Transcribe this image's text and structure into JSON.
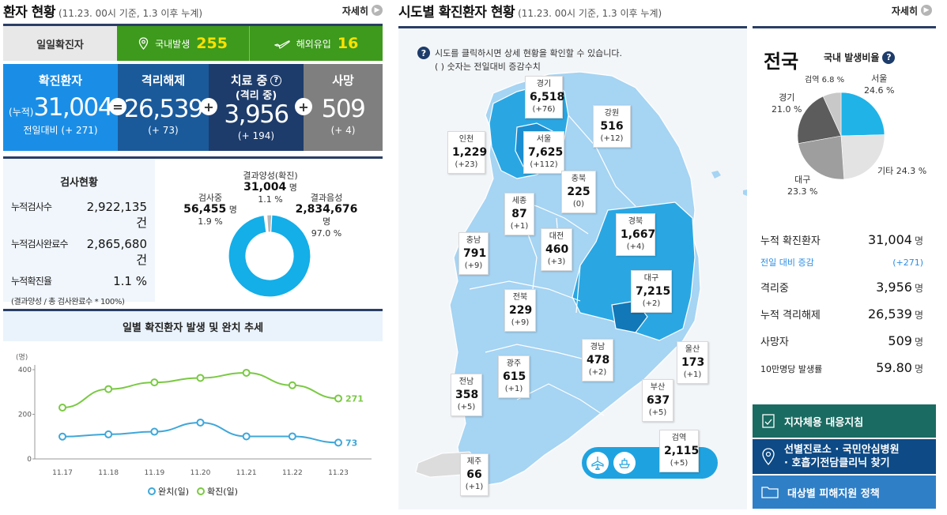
{
  "left_header": {
    "title": "환자 현황",
    "subtitle": "(11.23. 00시 기준, 1.3 이후 누계)",
    "more": "자세히"
  },
  "daily": {
    "label": "일일확진자",
    "domestic_label": "국내발생",
    "domestic_value": "255",
    "overseas_label": "해외유입",
    "overseas_value": "16"
  },
  "summary": {
    "confirmed": {
      "title": "확진환자",
      "prefix": "(누적)",
      "value": "31,004",
      "diff": "전일대비 (+ 271)"
    },
    "released": {
      "title": "격리해제",
      "value": "26,539",
      "diff": "(+ 73)"
    },
    "treating": {
      "title": "치료 중",
      "subtitle": "(격리 중)",
      "value": "3,956",
      "diff": "(+ 194)"
    },
    "deceased": {
      "title": "사망",
      "value": "509",
      "diff": "(+ 4)"
    },
    "op_equal": "=",
    "op_plus": "+"
  },
  "tests": {
    "title": "검사현황",
    "rows": [
      {
        "label": "누적검사수",
        "value": "2,922,135 건"
      },
      {
        "label": "누적검사완료수",
        "value": "2,865,680 건"
      },
      {
        "label": "누적확진율",
        "value": "1.1 %"
      }
    ],
    "note": "(결과양성 / 총 검사완료수 * 100%)",
    "donut": {
      "positive_label": "결과양성(확진)",
      "positive_value": "31,004",
      "positive_unit": "명",
      "positive_pct": "1.1 %",
      "testing_label": "검사중",
      "testing_value": "56,455",
      "testing_unit": "명",
      "testing_pct": "1.9 %",
      "negative_label": "결과음성",
      "negative_value": "2,834,676",
      "negative_unit": "명",
      "negative_pct": "97.0 %",
      "shares": [
        1.1,
        1.9,
        97.0
      ],
      "colors": [
        "#ffffff",
        "#b8b8b8",
        "#14aee8"
      ]
    }
  },
  "chart_data": {
    "type": "line",
    "title": "일별 확진환자 발생 및 완치 추세",
    "ylabel": "(명)",
    "ylim": [
      0,
      400
    ],
    "yticks": [
      "0",
      "200",
      "400"
    ],
    "categories": [
      "11.17",
      "11.18",
      "11.19",
      "11.20",
      "11.21",
      "11.22",
      "11.23"
    ],
    "series": [
      {
        "name": "완치(일)",
        "color": "#3fa7d9",
        "values": [
          100,
          110,
          122,
          163,
          101,
          101,
          73
        ]
      },
      {
        "name": "확진(일)",
        "color": "#7ac943",
        "values": [
          230,
          313,
          343,
          363,
          386,
          330,
          271
        ]
      }
    ],
    "end_labels": [
      "73",
      "271"
    ],
    "legend": "bottom"
  },
  "map_header": {
    "title": "시도별 확진환자 현황",
    "subtitle": "(11.23. 00시 기준, 1.3 이후 누계)",
    "more": "자세히"
  },
  "map": {
    "help_icon": "question-icon",
    "notice_line1": "시도를 클릭하시면 상세 현황을 확인할 수 있습니다.",
    "notice_line2": "( ) 숫자는 전일대비 증감수치",
    "regions": [
      {
        "name": "경기",
        "value": "6,518",
        "diff": "(+76)"
      },
      {
        "name": "강원",
        "value": "516",
        "diff": "(+12)"
      },
      {
        "name": "인천",
        "value": "1,229",
        "diff": "(+23)"
      },
      {
        "name": "서울",
        "value": "7,625",
        "diff": "(+112)"
      },
      {
        "name": "충북",
        "value": "225",
        "diff": "(0)"
      },
      {
        "name": "세종",
        "value": "87",
        "diff": "(+1)"
      },
      {
        "name": "경북",
        "value": "1,667",
        "diff": "(+4)"
      },
      {
        "name": "충남",
        "value": "791",
        "diff": "(+9)"
      },
      {
        "name": "대전",
        "value": "460",
        "diff": "(+3)"
      },
      {
        "name": "대구",
        "value": "7,215",
        "diff": "(+2)"
      },
      {
        "name": "전북",
        "value": "229",
        "diff": "(+9)"
      },
      {
        "name": "경남",
        "value": "478",
        "diff": "(+2)"
      },
      {
        "name": "울산",
        "value": "173",
        "diff": "(+1)"
      },
      {
        "name": "광주",
        "value": "615",
        "diff": "(+1)"
      },
      {
        "name": "전남",
        "value": "358",
        "diff": "(+5)"
      },
      {
        "name": "부산",
        "value": "637",
        "diff": "(+5)"
      },
      {
        "name": "제주",
        "value": "66",
        "diff": "(+1)"
      }
    ],
    "quarantine": {
      "name": "검역",
      "value": "2,115",
      "diff": "(+5)",
      "icons": [
        "airplane-icon",
        "ship-icon"
      ]
    }
  },
  "national": {
    "title": "전국",
    "pie_title": "국내 발생비율",
    "pie": [
      {
        "label": "서울",
        "pct": "24.6 %",
        "value": 24.6,
        "color": "#1fb3e8"
      },
      {
        "label": "기타",
        "pct": "24.3 %",
        "value": 24.3,
        "color": "#e3e3e3"
      },
      {
        "label": "대구",
        "pct": "23.3 %",
        "value": 23.3,
        "color": "#9e9e9e"
      },
      {
        "label": "경기",
        "pct": "21.0 %",
        "value": 21.0,
        "color": "#5c5c5c"
      },
      {
        "label": "검역",
        "pct": "6.8 %",
        "value": 6.8,
        "color": "#c8c8c8"
      }
    ],
    "stats": [
      {
        "label": "누적 확진환자",
        "value": "31,004",
        "unit": "명"
      },
      {
        "label": "전일 대비 증감",
        "value": "(+271)",
        "unit": ""
      },
      {
        "label": "격리중",
        "value": "3,956",
        "unit": "명"
      },
      {
        "label": "누적 격리해제",
        "value": "26,539",
        "unit": "명"
      },
      {
        "label": "사망자",
        "value": "509",
        "unit": "명"
      },
      {
        "label": "10만명당 발생률",
        "value": "59.80",
        "unit": "명"
      }
    ],
    "buttons": [
      {
        "label": "지자체용 대응지침",
        "icon": "document-check-icon",
        "color": "#1a6b62"
      },
      {
        "label_line1": "선별진료소 · 국민안심병원",
        "label_line2": "· 호흡기전담클리닉 찾기",
        "icon": "map-pin-icon",
        "color": "#0d4a86"
      },
      {
        "label": "대상별 피해지원 정책",
        "icon": "folder-icon",
        "color": "#2f7fc7"
      }
    ]
  }
}
